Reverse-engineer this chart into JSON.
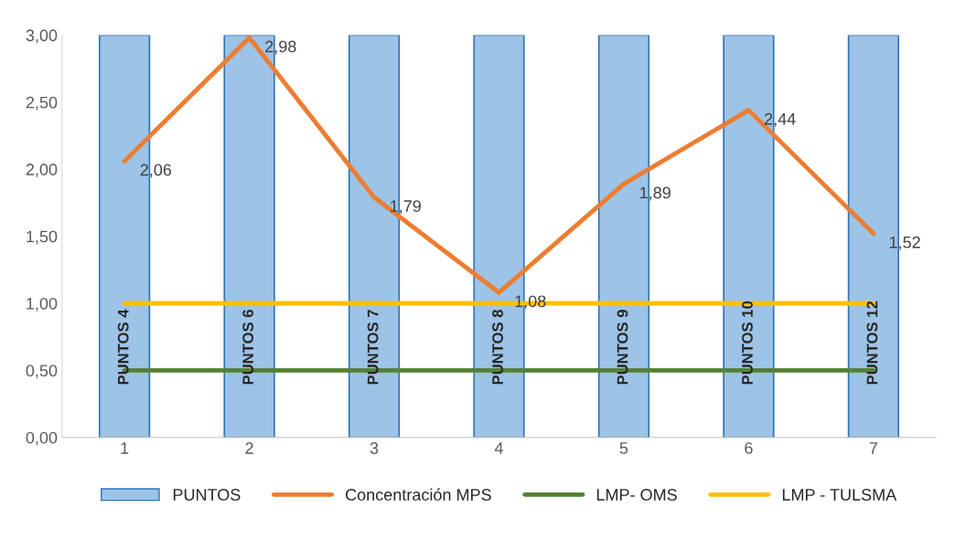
{
  "chart_data": {
    "type": "bar",
    "categories": [
      "1",
      "2",
      "3",
      "4",
      "5",
      "6",
      "7"
    ],
    "series": [
      {
        "name": "PUNTOS",
        "color": "#9dc3e6",
        "values": [
          3,
          3,
          3,
          3,
          3,
          3,
          3
        ],
        "value_labels": [
          "PUNTOS 4",
          "PUNTOS 6",
          "PUNTOS 7",
          "PUNTOS 8",
          "PUNTOS 9",
          "PUNTOS 10",
          "PUNTOS 12"
        ]
      },
      {
        "name": "Concentración MPS",
        "type": "line",
        "color": "#ed7d31",
        "values": [
          2.06,
          2.98,
          1.79,
          1.08,
          1.89,
          2.44,
          1.52
        ],
        "value_labels": [
          "2,06",
          "2,98",
          "1,79",
          "1,08",
          "1,89",
          "2,44",
          "1,52"
        ]
      },
      {
        "name": "LMP- OMS",
        "type": "line",
        "color": "#548235",
        "values": [
          0.5,
          0.5,
          0.5,
          0.5,
          0.5,
          0.5,
          0.5
        ]
      },
      {
        "name": "LMP - TULSMA",
        "type": "line",
        "color": "#ffc000",
        "values": [
          1,
          1,
          1,
          1,
          1,
          1,
          1
        ]
      }
    ],
    "ylim": [
      0,
      3
    ],
    "yticks": [
      {
        "value": 0,
        "label": "0,00"
      },
      {
        "value": 0.5,
        "label": "0,50"
      },
      {
        "value": 1,
        "label": "1,00"
      },
      {
        "value": 1.5,
        "label": "1,50"
      },
      {
        "value": 2,
        "label": "2,00"
      },
      {
        "value": 2.5,
        "label": "2,50"
      },
      {
        "value": 3,
        "label": "3,00"
      }
    ],
    "grid": false,
    "legend": "bottom",
    "marker": "none",
    "line_style": "solid"
  }
}
